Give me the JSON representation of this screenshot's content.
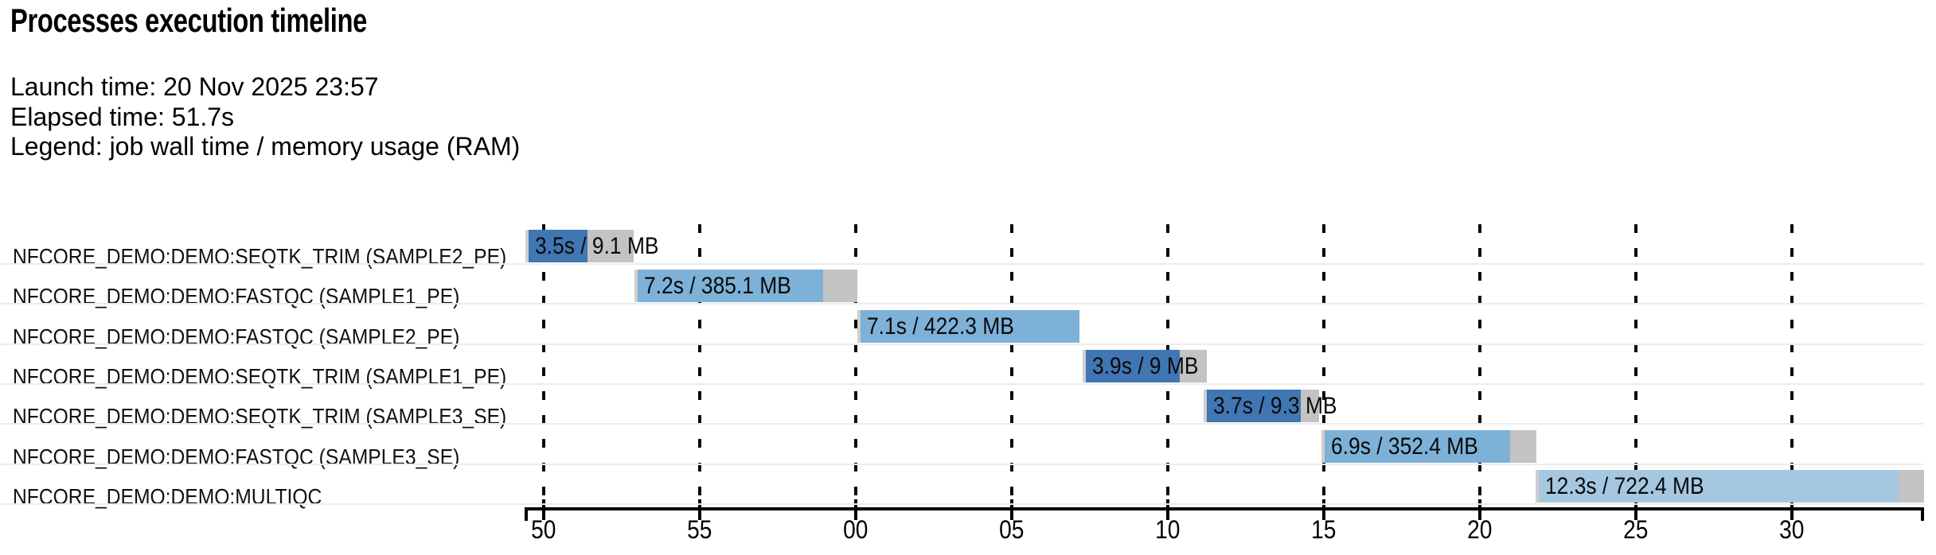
{
  "header": {
    "title": "Processes execution timeline",
    "launch_line": "Launch time: 20 Nov 2025 23:57",
    "elapsed_line": "Elapsed time: 51.7s",
    "legend_line": "Legend: job wall time / memory usage (RAM)"
  },
  "colors": {
    "dark": "#4076b2",
    "mid": "#7db1d8",
    "light": "#a5c8e0",
    "tail": "#c3c3c3",
    "sliver": "#cfcfcf",
    "separator": "#ececec",
    "axis": "#000000"
  },
  "chart_data": {
    "type": "timeline",
    "title": "Processes execution timeline",
    "launch_time": "20 Nov 2025 23:57",
    "elapsed_time_s": 51.7,
    "legend": "job wall time / memory usage (RAM)",
    "x_axis": {
      "unit": "seconds (time of day, wrapping minute boundary)",
      "tick_interval_s": 5,
      "tick_labels": [
        "50",
        "55",
        "00",
        "05",
        "10",
        "15",
        "20",
        "25",
        "30"
      ],
      "grid": "dashed-vertical"
    },
    "rows": [
      {
        "process": "NFCORE_DEMO:DEMO:SEQTK_TRIM (SAMPLE2_PE)",
        "bar_label": "3.5s / 9.1 MB",
        "wall_time": "3.5s",
        "memory": "9.1 MB",
        "color": "dark",
        "start_s": -0.59,
        "run_end_s": 1.4,
        "end_s": 2.88
      },
      {
        "process": "NFCORE_DEMO:DEMO:FASTQC (SAMPLE1_PE)",
        "bar_label": "7.2s / 385.1 MB",
        "wall_time": "7.2s",
        "memory": "385.1 MB",
        "color": "mid",
        "start_s": 2.91,
        "run_end_s": 8.95,
        "end_s": 10.05
      },
      {
        "process": "NFCORE_DEMO:DEMO:FASTQC (SAMPLE2_PE)",
        "bar_label": "7.1s / 422.3 MB",
        "wall_time": "7.1s",
        "memory": "422.3 MB",
        "color": "mid",
        "start_s": 10.05,
        "run_end_s": 17.17,
        "end_s": 17.17
      },
      {
        "process": "NFCORE_DEMO:DEMO:SEQTK_TRIM (SAMPLE1_PE)",
        "bar_label": "3.9s / 9 MB",
        "wall_time": "3.9s",
        "memory": "9 MB",
        "color": "dark",
        "start_s": 17.27,
        "run_end_s": 20.38,
        "end_s": 21.25
      },
      {
        "process": "NFCORE_DEMO:DEMO:SEQTK_TRIM (SAMPLE3_SE)",
        "bar_label": "3.7s / 9.3 MB",
        "wall_time": "3.7s",
        "memory": "9.3 MB",
        "color": "dark",
        "start_s": 21.15,
        "run_end_s": 24.26,
        "end_s": 24.85
      },
      {
        "process": "NFCORE_DEMO:DEMO:FASTQC (SAMPLE3_SE)",
        "bar_label": "6.9s / 352.4 MB",
        "wall_time": "6.9s",
        "memory": "352.4 MB",
        "color": "mid",
        "start_s": 24.92,
        "run_end_s": 30.97,
        "end_s": 31.81
      },
      {
        "process": "NFCORE_DEMO:DEMO:MULTIQC",
        "bar_label": "12.3s / 722.4 MB",
        "wall_time": "12.3s",
        "memory": "722.4 MB",
        "color": "light",
        "start_s": 31.79,
        "run_end_s": 43.44,
        "end_s": 44.23
      }
    ]
  }
}
